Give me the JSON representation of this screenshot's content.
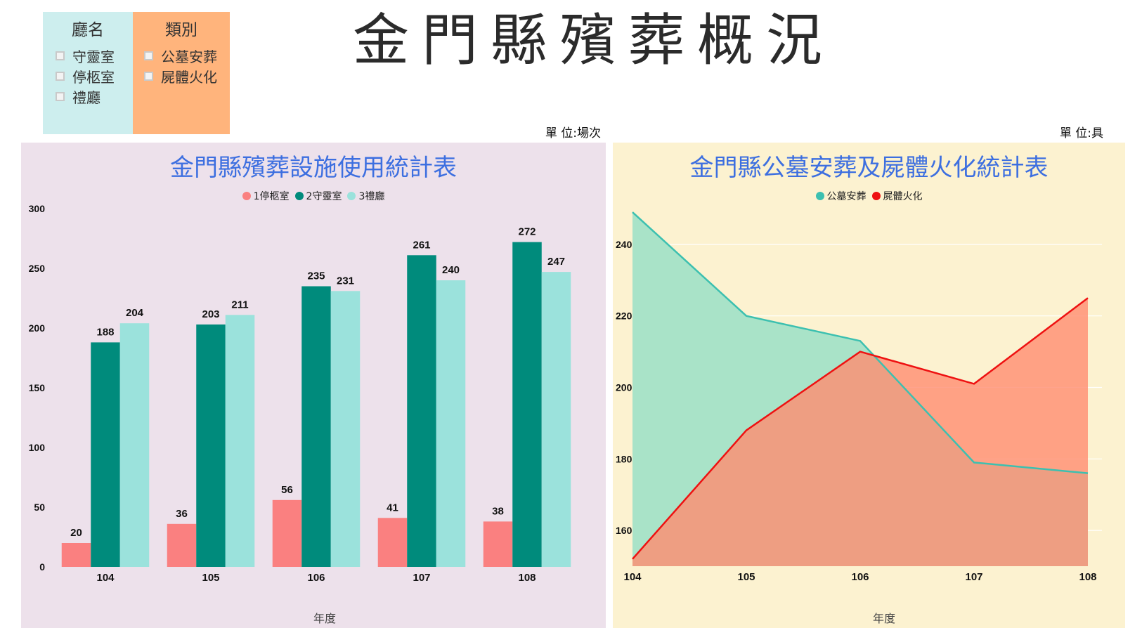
{
  "filters": {
    "hall": {
      "title": "廳名",
      "items": [
        {
          "label": "守靈室"
        },
        {
          "label": "停柩室"
        },
        {
          "label": "禮廳"
        }
      ]
    },
    "type": {
      "title": "類別",
      "items": [
        {
          "label": "公墓安葬"
        },
        {
          "label": "屍體火化"
        }
      ]
    }
  },
  "page_title": "金門縣殯葬概況",
  "units": {
    "left": "單 位:場次",
    "right": "單 位:具"
  },
  "chart_data": [
    {
      "type": "bar",
      "title": "金門縣殯葬設施使用統計表",
      "xlabel": "年度",
      "ylabel": "",
      "ylim": [
        0,
        300
      ],
      "yticks": [
        0,
        50,
        100,
        150,
        200,
        250,
        300
      ],
      "categories": [
        "104",
        "105",
        "106",
        "107",
        "108"
      ],
      "legend_position": "top-center",
      "data_labels": true,
      "series": [
        {
          "name": "1停柩室",
          "color": "#fa8080",
          "values": [
            20,
            36,
            56,
            41,
            38
          ]
        },
        {
          "name": "2守靈室",
          "color": "#008b7c",
          "values": [
            188,
            203,
            235,
            261,
            272
          ]
        },
        {
          "name": "3禮廳",
          "color": "#9be2dc",
          "values": [
            204,
            211,
            231,
            240,
            247
          ]
        }
      ]
    },
    {
      "type": "area",
      "title": "金門縣公墓安葬及屍體火化統計表",
      "xlabel": "年度",
      "ylabel": "",
      "ylim": [
        150,
        250
      ],
      "yticks": [
        160,
        180,
        200,
        220,
        240
      ],
      "grid": true,
      "categories": [
        "104",
        "105",
        "106",
        "107",
        "108"
      ],
      "legend_position": "top-center",
      "series": [
        {
          "name": "公墓安葬",
          "color": "#3cc0b0",
          "fill": "#a9e3c8",
          "values": [
            249,
            220,
            213,
            179,
            176
          ]
        },
        {
          "name": "屍體火化",
          "color": "#ee1111",
          "fill": "#ff8c70",
          "values": [
            152,
            188,
            210,
            201,
            225
          ]
        }
      ]
    }
  ]
}
